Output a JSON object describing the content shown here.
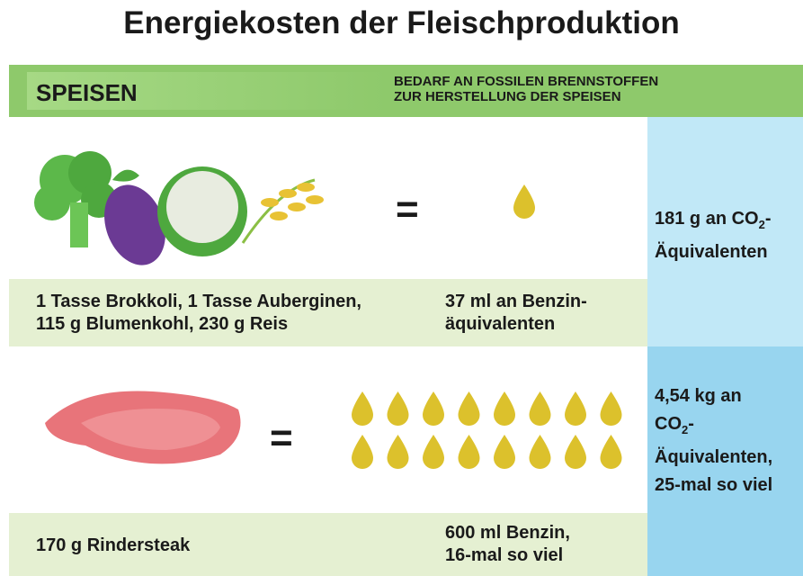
{
  "title": "Energiekosten der Fleischproduktion",
  "header": {
    "left": "SPEISEN",
    "right": [
      "BEDARF AN FOSSILEN BRENNSTOFFEN",
      "ZUR HERSTELLUNG DER SPEISEN"
    ]
  },
  "rows": [
    {
      "equals": "=",
      "food": [
        "1 Tasse Brokkoli, 1 Tasse Auberginen,",
        "115 g Blumenkohl, 230 g Reis"
      ],
      "fuel": [
        "37 ml an Benzin-",
        "äquivalenten"
      ],
      "co2": [
        [
          "181 g an CO",
          "2",
          "-"
        ],
        [
          "Äquivalenten"
        ]
      ]
    },
    {
      "equals": "=",
      "food": [
        "170 g Rindersteak"
      ],
      "fuel": [
        "600 ml Benzin,",
        "16-mal so viel"
      ],
      "co2": [
        [
          "4,54 kg an"
        ],
        [
          "CO",
          "2",
          "-"
        ],
        [
          "Äquivalenten,"
        ],
        [
          "25-mal so viel"
        ]
      ]
    }
  ]
}
